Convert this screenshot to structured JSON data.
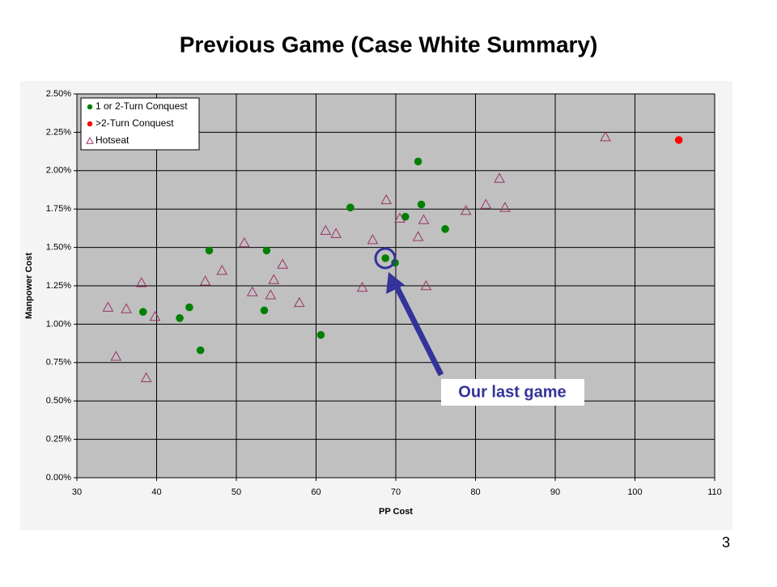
{
  "chart_data": {
    "type": "scatter",
    "title": "Previous Game  (Case White Summary)",
    "x_label": "PP Cost",
    "y_label": "Manpower Cost",
    "xlim": [
      30,
      110
    ],
    "xticks": [
      30,
      40,
      50,
      60,
      70,
      80,
      90,
      100,
      110
    ],
    "ylim": [
      0,
      2.5
    ],
    "yticks": [
      {
        "value": 0,
        "label": "0.00%"
      },
      {
        "value": 0.25,
        "label": "0.25%"
      },
      {
        "value": 0.5,
        "label": "0.50%"
      },
      {
        "value": 0.75,
        "label": "0.75%"
      },
      {
        "value": 1.0,
        "label": "1.00%"
      },
      {
        "value": 1.25,
        "label": "1.25%"
      },
      {
        "value": 1.5,
        "label": "1.50%"
      },
      {
        "value": 1.75,
        "label": "1.75%"
      },
      {
        "value": 2.0,
        "label": "2.00%"
      },
      {
        "value": 2.25,
        "label": "2.25%"
      },
      {
        "value": 2.5,
        "label": "2.50%"
      }
    ],
    "grid": true,
    "legend": "upper left",
    "annotation": "Our last game",
    "series": [
      {
        "name": "1 or 2-Turn Conquest",
        "color": "#008000",
        "marker": "circle",
        "x": [
          72.8,
          64.3,
          71.2,
          73.2,
          76.2,
          46.6,
          53.8,
          68.7,
          69.9,
          38.3,
          44.1,
          42.9,
          53.5,
          60.6,
          45.5
        ],
        "values": [
          2.06,
          1.76,
          1.7,
          1.78,
          1.62,
          1.48,
          1.48,
          1.43,
          1.4,
          1.08,
          1.11,
          1.04,
          1.09,
          0.93,
          0.83
        ]
      },
      {
        "name": ">2-Turn Conquest",
        "color": "#ff0000",
        "marker": "circle",
        "x": [
          105.5
        ],
        "values": [
          2.2
        ]
      },
      {
        "name": "Hotseat",
        "color": "#993366",
        "marker": "triangle",
        "x": [
          96.3,
          83.0,
          68.8,
          81.3,
          83.7,
          78.8,
          70.5,
          73.5,
          61.2,
          62.5,
          72.8,
          67.1,
          51.0,
          55.8,
          48.2,
          54.7,
          38.1,
          46.1,
          65.8,
          73.8,
          52.0,
          54.3,
          57.9,
          33.9,
          36.2,
          39.8,
          34.9,
          38.7
        ],
        "values": [
          2.22,
          1.95,
          1.81,
          1.78,
          1.76,
          1.74,
          1.69,
          1.68,
          1.61,
          1.59,
          1.57,
          1.55,
          1.53,
          1.39,
          1.35,
          1.29,
          1.27,
          1.28,
          1.24,
          1.25,
          1.21,
          1.19,
          1.14,
          1.11,
          1.1,
          1.05,
          0.79,
          0.65
        ]
      }
    ]
  },
  "slide_number": "3"
}
